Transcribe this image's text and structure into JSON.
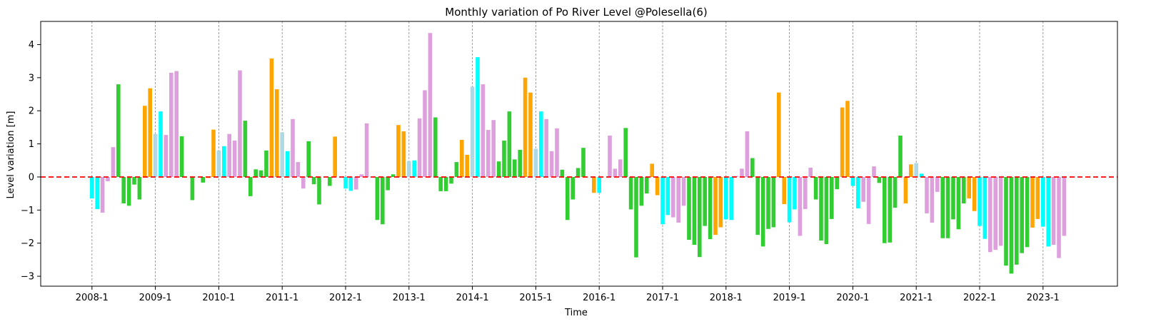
{
  "chart_data": {
    "type": "bar",
    "title": "Monthly variation of Po River Level @Polesella(6)",
    "xlabel": "Time",
    "ylabel": "Level variation [m]",
    "ylim": [
      -3.3,
      4.7
    ],
    "y_ticks": [
      -3,
      -2,
      -1,
      0,
      1,
      2,
      3,
      4
    ],
    "x_start": "2008-1",
    "x_ticks": [
      "2008-1",
      "2009-1",
      "2010-1",
      "2011-1",
      "2012-1",
      "2013-1",
      "2014-1",
      "2015-1",
      "2016-1",
      "2017-1",
      "2018-1",
      "2019-1",
      "2020-1",
      "2021-1",
      "2022-1",
      "2023-1"
    ],
    "zero_line": {
      "value": 0,
      "color": "#ff0000",
      "style": "dashed"
    },
    "year_gridlines": {
      "color": "#888888",
      "style": "dashed"
    },
    "colors": {
      "lightblue": "#add8e6",
      "cyan": "#00ffff",
      "plum": "#dda0dd",
      "green": "#32cd32",
      "orange": "#ffa500"
    },
    "season_colors_by_month": [
      "cyan",
      "cyan",
      "plum",
      "plum",
      "plum",
      "green",
      "green",
      "green",
      "green",
      "green",
      "orange",
      "orange"
    ],
    "series": [
      {
        "values": [
          -0.65,
          -0.97,
          -1.08,
          -0.13,
          0.9,
          2.8,
          -0.8,
          -0.87,
          -0.23,
          -0.68,
          2.15,
          2.68,
          1.3,
          1.98,
          1.27,
          3.15,
          3.2,
          1.23,
          0.0,
          -0.7,
          0.0,
          -0.17,
          -0.03,
          1.43,
          0.8,
          0.93,
          1.3,
          1.1,
          3.22,
          1.7,
          -0.58,
          0.23,
          0.2,
          0.8,
          3.58,
          2.65,
          1.35,
          0.78,
          1.75,
          0.45,
          -0.35,
          1.08,
          -0.22,
          -0.83,
          0.0,
          -0.27,
          1.22,
          0.0,
          -0.35,
          -0.42,
          -0.38,
          0.08,
          1.62,
          0.0,
          -1.3,
          -1.43,
          -0.4,
          0.08,
          1.57,
          1.38,
          0.48,
          0.5,
          1.77,
          2.62,
          4.35,
          1.8,
          -0.43,
          -0.43,
          -0.2,
          0.45,
          1.12,
          0.67,
          2.73,
          3.62,
          2.8,
          1.42,
          1.72,
          0.47,
          1.1,
          1.98,
          0.53,
          0.82,
          3.0,
          2.55,
          0.85,
          1.98,
          1.75,
          0.78,
          1.47,
          0.22,
          -1.3,
          -0.68,
          0.27,
          0.88,
          0.0,
          -0.48,
          -0.48,
          0.0,
          1.25,
          0.25,
          0.53,
          1.48,
          -0.98,
          -2.43,
          -0.87,
          -0.5,
          0.4,
          -0.55,
          -1.43,
          -1.15,
          -1.22,
          -1.38,
          -0.87,
          -1.9,
          -2.05,
          -2.42,
          -1.48,
          -1.88,
          -1.75,
          -1.52,
          -1.28,
          -1.3,
          0.03,
          0.25,
          1.38,
          0.57,
          -1.75,
          -2.1,
          -1.57,
          -1.52,
          2.55,
          -0.82,
          -1.37,
          -0.98,
          -1.78,
          -0.97,
          0.28,
          -0.68,
          -1.92,
          -2.03,
          -1.27,
          -0.37,
          2.1,
          2.3,
          -0.27,
          -0.95,
          -0.75,
          -1.42,
          0.32,
          -0.18,
          -2.0,
          -1.98,
          -0.93,
          1.25,
          -0.8,
          0.38,
          0.42,
          0.1,
          -1.1,
          -1.38,
          -0.45,
          -1.85,
          -1.85,
          -1.28,
          -1.58,
          -0.8,
          -0.65,
          -1.03,
          -1.48,
          -1.87,
          -2.27,
          -2.2,
          -2.08,
          -2.68,
          -2.92,
          -2.65,
          -2.3,
          -2.12,
          -1.53,
          -1.27,
          -1.5,
          -2.1,
          -2.05,
          -2.45,
          -1.78
        ]
      }
    ]
  }
}
